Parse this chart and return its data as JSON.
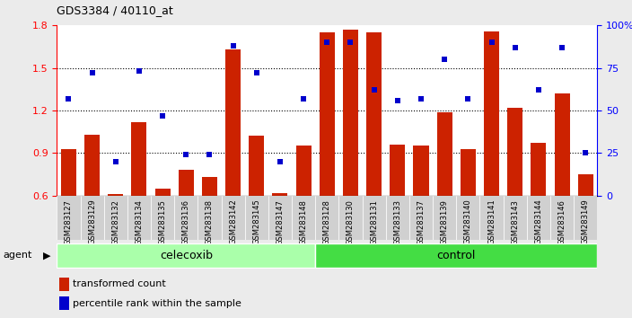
{
  "title": "GDS3384 / 40110_at",
  "samples": [
    "GSM283127",
    "GSM283129",
    "GSM283132",
    "GSM283134",
    "GSM283135",
    "GSM283136",
    "GSM283138",
    "GSM283142",
    "GSM283145",
    "GSM283147",
    "GSM283148",
    "GSM283128",
    "GSM283130",
    "GSM283131",
    "GSM283133",
    "GSM283137",
    "GSM283139",
    "GSM283140",
    "GSM283141",
    "GSM283143",
    "GSM283144",
    "GSM283146",
    "GSM283149"
  ],
  "bar_values": [
    0.93,
    1.03,
    0.61,
    1.12,
    0.65,
    0.78,
    0.73,
    1.63,
    1.02,
    0.62,
    0.95,
    1.75,
    1.77,
    1.75,
    0.96,
    0.95,
    1.19,
    0.93,
    1.76,
    1.22,
    0.97,
    1.32,
    0.75
  ],
  "percentile_values": [
    57,
    72,
    20,
    73,
    47,
    24,
    24,
    88,
    72,
    20,
    57,
    90,
    90,
    62,
    56,
    57,
    80,
    57,
    90,
    87,
    62,
    87,
    25
  ],
  "n_celecoxib": 11,
  "n_control": 12,
  "bar_color": "#cc2200",
  "dot_color": "#0000cc",
  "ylim_left": [
    0.6,
    1.8
  ],
  "ylim_right": [
    0,
    100
  ],
  "yticks_left": [
    0.6,
    0.9,
    1.2,
    1.5,
    1.8
  ],
  "yticks_right": [
    0,
    25,
    50,
    75,
    100
  ],
  "yticklabels_right": [
    "0",
    "25",
    "50",
    "75",
    "100%"
  ],
  "dotted_lines": [
    0.9,
    1.2,
    1.5
  ],
  "agent_label": "agent",
  "celecoxib_label": "celecoxib",
  "control_label": "control",
  "legend_bar_label": "transformed count",
  "legend_dot_label": "percentile rank within the sample",
  "bg_color": "#ebebeb",
  "plot_bg": "#ffffff",
  "celecoxib_color": "#aaffaa",
  "control_color": "#44dd44",
  "tick_bg": "#d0d0d0"
}
